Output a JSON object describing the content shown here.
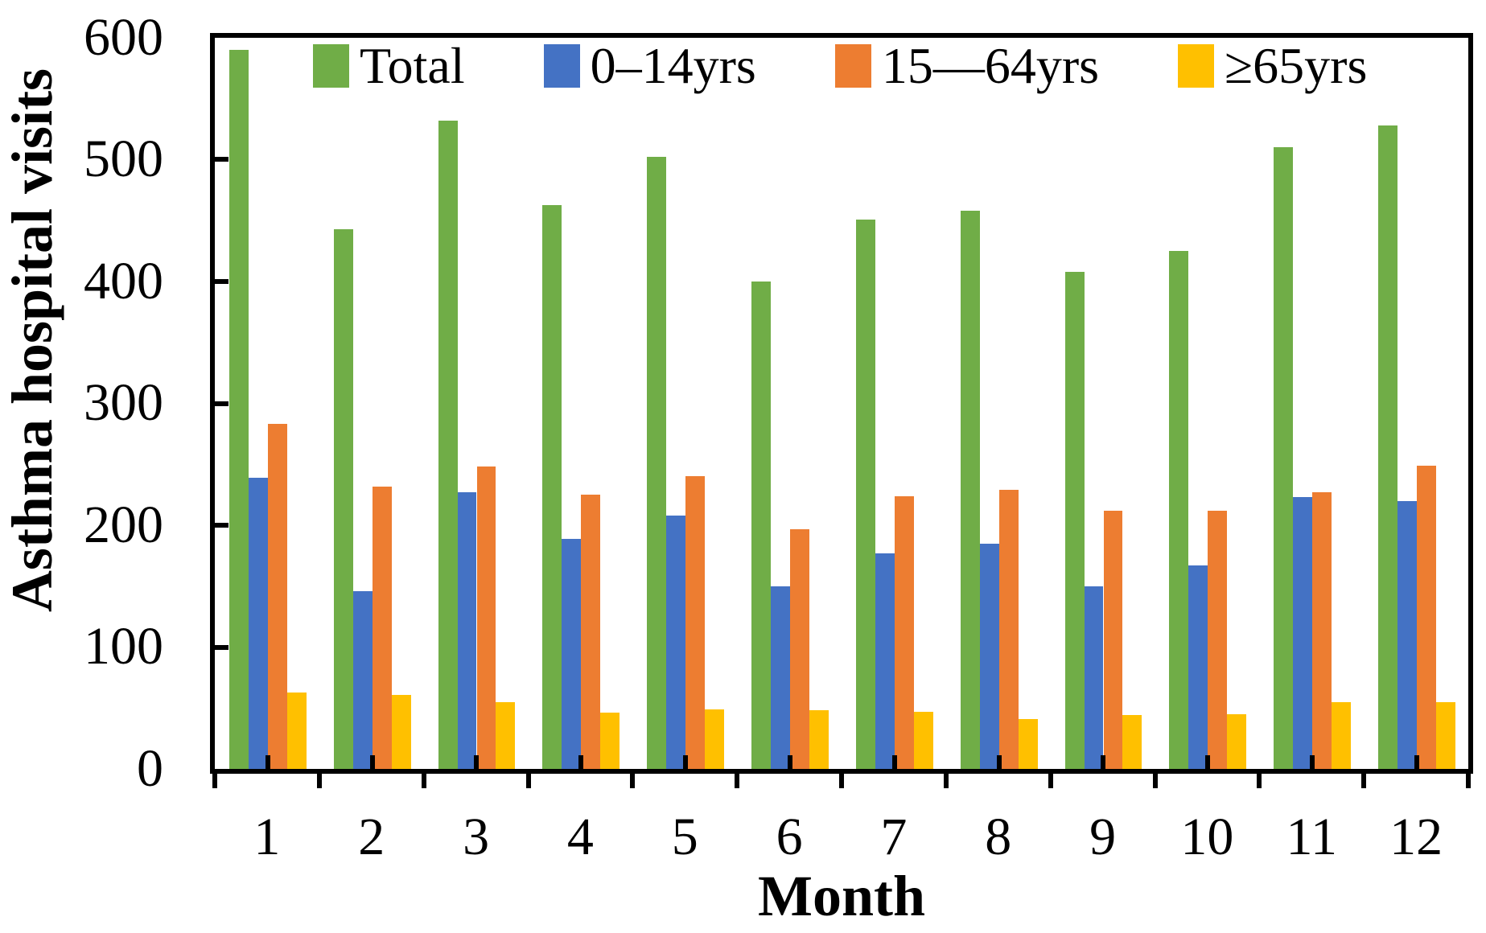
{
  "background": "#ffffff",
  "text_color": "#000000",
  "axis_color": "#000000",
  "chart_data": {
    "type": "bar",
    "title": "",
    "xlabel": "Month",
    "ylabel": "Asthma hospital visits",
    "ylim": [
      0,
      600
    ],
    "yticks": [
      0,
      100,
      200,
      300,
      400,
      500,
      600
    ],
    "grid": false,
    "legend_position": "top-inside",
    "categories": [
      "1",
      "2",
      "3",
      "4",
      "5",
      "6",
      "7",
      "8",
      "9",
      "10",
      "11",
      "12"
    ],
    "series": [
      {
        "name": "Total",
        "color": "#70AD47",
        "values": [
          590,
          443,
          532,
          463,
          502,
          400,
          451,
          458,
          408,
          425,
          510,
          528
        ]
      },
      {
        "name": "0–14yrs",
        "color": "#4472C4",
        "values": [
          239,
          146,
          227,
          189,
          208,
          150,
          177,
          185,
          150,
          167,
          223,
          220
        ]
      },
      {
        "name": "15—64yrs",
        "color": "#ED7D31",
        "values": [
          283,
          232,
          248,
          225,
          240,
          197,
          224,
          229,
          212,
          212,
          227,
          249
        ]
      },
      {
        "name": "≥65yrs",
        "color": "#FFC000",
        "values": [
          63,
          61,
          55,
          46,
          49,
          48,
          47,
          41,
          44,
          45,
          55,
          55
        ]
      }
    ]
  }
}
